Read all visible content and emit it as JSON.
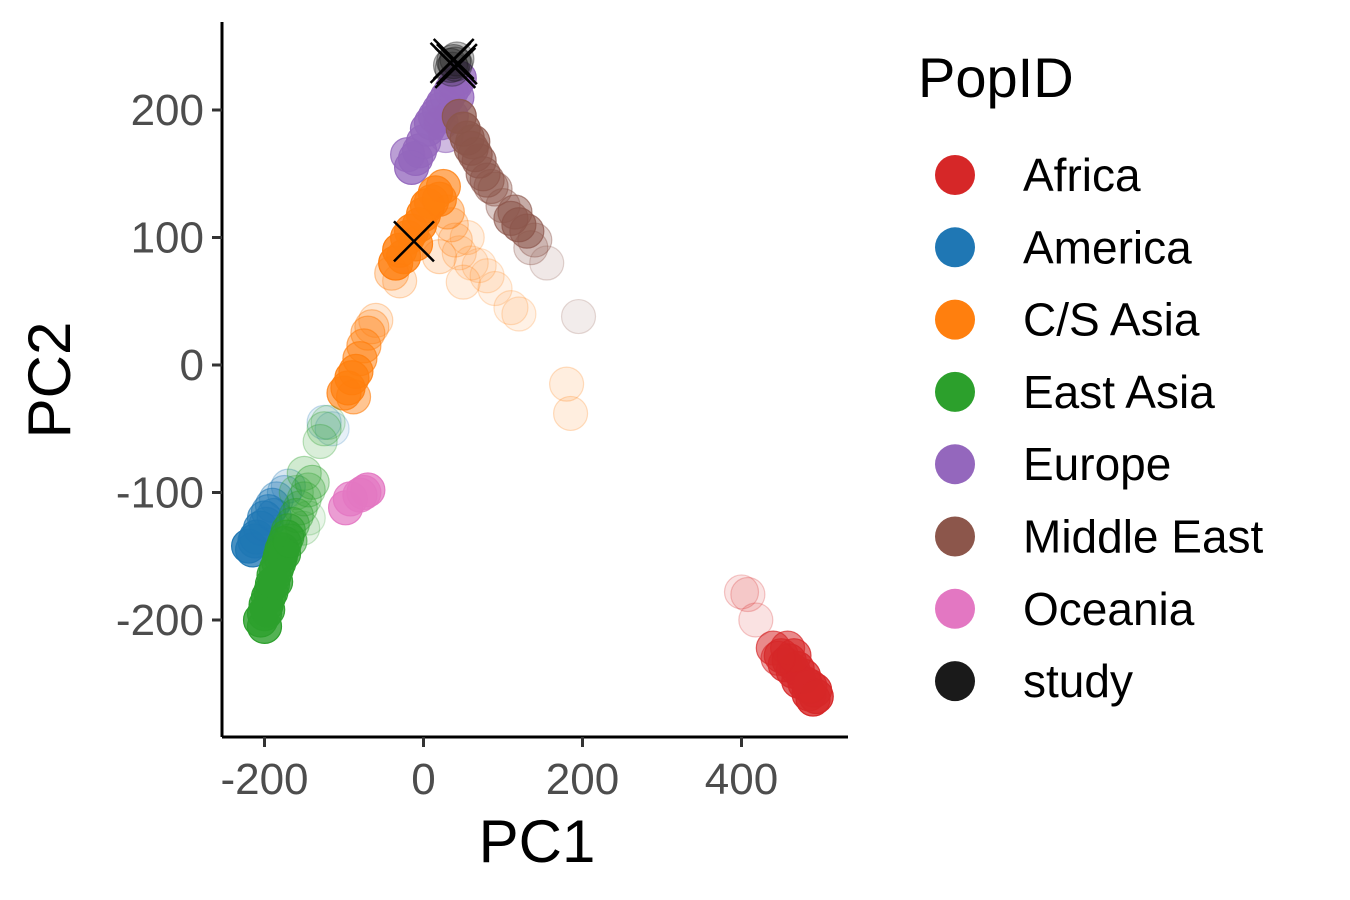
{
  "chart_data": {
    "type": "scatter",
    "title": "",
    "xlabel": "PC1",
    "ylabel": "PC2",
    "xlim": [
      -235,
      535
    ],
    "ylim": [
      -290,
      267
    ],
    "xticks": [
      -200,
      0,
      200,
      400
    ],
    "yticks": [
      -200,
      -100,
      0,
      100,
      200
    ],
    "xtick_labels": [
      "-200",
      "0",
      "200",
      "400"
    ],
    "ytick_labels": [
      "-200",
      "-100",
      "0",
      "100",
      "200"
    ],
    "grid": false,
    "legend": {
      "title": "PopID",
      "position": "right"
    },
    "series": [
      {
        "name": "Africa",
        "color": "#d62728",
        "points": [
          [
            400,
            -178,
            0.15
          ],
          [
            408,
            -180,
            0.15
          ],
          [
            418,
            -200,
            0.15
          ],
          [
            440,
            -222,
            0.6
          ],
          [
            450,
            -228,
            0.7
          ],
          [
            455,
            -235,
            0.75
          ],
          [
            460,
            -232,
            0.8
          ],
          [
            465,
            -240,
            0.8
          ],
          [
            470,
            -238,
            0.8
          ],
          [
            458,
            -222,
            0.6
          ],
          [
            472,
            -248,
            0.8
          ],
          [
            480,
            -250,
            0.85
          ],
          [
            485,
            -258,
            0.85
          ],
          [
            490,
            -262,
            0.9
          ],
          [
            492,
            -255,
            0.85
          ],
          [
            478,
            -244,
            0.8
          ],
          [
            466,
            -228,
            0.7
          ],
          [
            446,
            -230,
            0.5
          ],
          [
            486,
            -252,
            0.85
          ],
          [
            494,
            -260,
            0.9
          ]
        ]
      },
      {
        "name": "America",
        "color": "#1f77b4",
        "points": [
          [
            -220,
            -142,
            0.9
          ],
          [
            -215,
            -145,
            0.85
          ],
          [
            -210,
            -135,
            0.8
          ],
          [
            -205,
            -128,
            0.7
          ],
          [
            -200,
            -120,
            0.6
          ],
          [
            -195,
            -115,
            0.5
          ],
          [
            -190,
            -110,
            0.45
          ],
          [
            -185,
            -105,
            0.3
          ],
          [
            -175,
            -100,
            0.25
          ],
          [
            -170,
            -95,
            0.2
          ],
          [
            -212,
            -138,
            0.8
          ],
          [
            -198,
            -125,
            0.5
          ],
          [
            -188,
            -118,
            0.45
          ],
          [
            -125,
            -45,
            0.15
          ],
          [
            -115,
            -50,
            0.12
          ]
        ]
      },
      {
        "name": "C/S Asia",
        "color": "#ff7f0e",
        "points": [
          [
            -35,
            80,
            0.9
          ],
          [
            -30,
            90,
            0.9
          ],
          [
            -25,
            85,
            0.85
          ],
          [
            -20,
            100,
            0.85
          ],
          [
            -15,
            105,
            0.85
          ],
          [
            -10,
            95,
            0.8
          ],
          [
            -5,
            110,
            0.85
          ],
          [
            0,
            118,
            0.85
          ],
          [
            5,
            125,
            0.85
          ],
          [
            10,
            128,
            0.8
          ],
          [
            15,
            135,
            0.8
          ],
          [
            20,
            130,
            0.75
          ],
          [
            25,
            140,
            0.7
          ],
          [
            30,
            120,
            0.4
          ],
          [
            35,
            110,
            0.25
          ],
          [
            40,
            98,
            0.2
          ],
          [
            45,
            88,
            0.15
          ],
          [
            55,
            100,
            0.15
          ],
          [
            60,
            80,
            0.12
          ],
          [
            70,
            78,
            0.12
          ],
          [
            80,
            70,
            0.12
          ],
          [
            90,
            60,
            0.12
          ],
          [
            110,
            45,
            0.12
          ],
          [
            120,
            40,
            0.12
          ],
          [
            -40,
            72,
            0.3
          ],
          [
            -30,
            66,
            0.2
          ],
          [
            20,
            85,
            0.2
          ],
          [
            50,
            65,
            0.15
          ],
          [
            180,
            -15,
            0.15
          ],
          [
            185,
            -38,
            0.15
          ],
          [
            -65,
            30,
            0.3
          ],
          [
            -70,
            25,
            0.4
          ],
          [
            -75,
            15,
            0.5
          ],
          [
            -80,
            5,
            0.6
          ],
          [
            -85,
            -5,
            0.75
          ],
          [
            -90,
            -10,
            0.8
          ],
          [
            -95,
            -18,
            0.8
          ],
          [
            -100,
            -22,
            0.7
          ],
          [
            -88,
            -25,
            0.5
          ],
          [
            -60,
            35,
            0.2
          ]
        ]
      },
      {
        "name": "East Asia",
        "color": "#2ca02c",
        "points": [
          [
            -205,
            -200,
            0.9
          ],
          [
            -200,
            -195,
            0.9
          ],
          [
            -198,
            -188,
            0.9
          ],
          [
            -195,
            -182,
            0.9
          ],
          [
            -192,
            -178,
            0.9
          ],
          [
            -190,
            -172,
            0.9
          ],
          [
            -188,
            -165,
            0.85
          ],
          [
            -185,
            -160,
            0.85
          ],
          [
            -182,
            -155,
            0.85
          ],
          [
            -180,
            -150,
            0.85
          ],
          [
            -178,
            -145,
            0.8
          ],
          [
            -175,
            -140,
            0.75
          ],
          [
            -172,
            -135,
            0.7
          ],
          [
            -170,
            -130,
            0.5
          ],
          [
            -165,
            -125,
            0.4
          ],
          [
            -160,
            -118,
            0.35
          ],
          [
            -155,
            -112,
            0.3
          ],
          [
            -150,
            -105,
            0.25
          ],
          [
            -145,
            -98,
            0.25
          ],
          [
            -140,
            -92,
            0.3
          ],
          [
            -150,
            -85,
            0.25
          ],
          [
            -160,
            -100,
            0.2
          ],
          [
            -130,
            -60,
            0.2
          ],
          [
            -125,
            -50,
            0.2
          ],
          [
            -120,
            -45,
            0.15
          ],
          [
            -200,
            -205,
            0.9
          ],
          [
            -196,
            -192,
            0.85
          ],
          [
            -186,
            -170,
            0.85
          ],
          [
            -176,
            -148,
            0.8
          ],
          [
            -168,
            -138,
            0.5
          ],
          [
            -152,
            -128,
            0.15
          ],
          [
            -145,
            -120,
            0.12
          ]
        ]
      },
      {
        "name": "Europe",
        "color": "#9467bd",
        "points": [
          [
            -15,
            155,
            0.85
          ],
          [
            -10,
            162,
            0.85
          ],
          [
            -5,
            168,
            0.8
          ],
          [
            0,
            175,
            0.8
          ],
          [
            5,
            185,
            0.85
          ],
          [
            10,
            190,
            0.85
          ],
          [
            15,
            195,
            0.85
          ],
          [
            20,
            200,
            0.85
          ],
          [
            25,
            205,
            0.85
          ],
          [
            30,
            210,
            0.85
          ],
          [
            35,
            215,
            0.85
          ],
          [
            40,
            220,
            0.85
          ],
          [
            45,
            225,
            0.85
          ],
          [
            35,
            195,
            0.7
          ],
          [
            28,
            180,
            0.5
          ],
          [
            -20,
            165,
            0.7
          ],
          [
            42,
            210,
            0.8
          ],
          [
            22,
            190,
            0.75
          ]
        ]
      },
      {
        "name": "Middle East",
        "color": "#8c564b",
        "points": [
          [
            45,
            195,
            0.8
          ],
          [
            50,
            185,
            0.8
          ],
          [
            55,
            178,
            0.75
          ],
          [
            60,
            170,
            0.7
          ],
          [
            65,
            165,
            0.7
          ],
          [
            70,
            160,
            0.65
          ],
          [
            75,
            150,
            0.6
          ],
          [
            80,
            145,
            0.55
          ],
          [
            90,
            138,
            0.4
          ],
          [
            100,
            125,
            0.35
          ],
          [
            110,
            115,
            0.6
          ],
          [
            120,
            110,
            0.7
          ],
          [
            130,
            105,
            0.6
          ],
          [
            140,
            98,
            0.3
          ],
          [
            155,
            80,
            0.15
          ],
          [
            195,
            38,
            0.12
          ],
          [
            85,
            140,
            0.45
          ],
          [
            115,
            120,
            0.55
          ],
          [
            135,
            92,
            0.25
          ],
          [
            62,
            175,
            0.7
          ]
        ]
      },
      {
        "name": "Oceania",
        "color": "#e377c2",
        "points": [
          [
            -98,
            -112,
            0.8
          ],
          [
            -92,
            -105,
            0.75
          ],
          [
            -75,
            -100,
            0.8
          ],
          [
            -70,
            -98,
            0.85
          ],
          [
            -80,
            -102,
            0.75
          ]
        ]
      },
      {
        "name": "study",
        "color": "#1a1a1a",
        "points": [
          [
            34,
            235,
            0.3
          ],
          [
            38,
            238,
            0.35
          ],
          [
            42,
            240,
            0.3
          ],
          [
            36,
            232,
            0.25
          ],
          [
            40,
            236,
            0.3
          ]
        ],
        "crosses": [
          [
            34,
            237
          ],
          [
            38,
            240
          ],
          [
            42,
            236
          ],
          [
            40,
            233
          ],
          [
            -12,
            97
          ]
        ]
      }
    ]
  }
}
